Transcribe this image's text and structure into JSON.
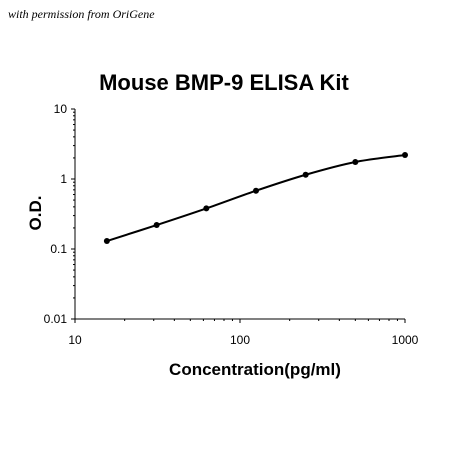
{
  "watermark": "with permission from OriGene",
  "chart_data": {
    "type": "line",
    "title": "Mouse BMP-9 ELISA Kit",
    "xlabel": "Concentration(pg/ml)",
    "ylabel": "O.D.",
    "xscale": "log",
    "yscale": "log",
    "xlim": [
      10,
      1000
    ],
    "ylim": [
      0.01,
      10
    ],
    "x_ticks": [
      "10",
      "100",
      "1000"
    ],
    "y_ticks": [
      "0.01",
      "0.1",
      "1",
      "10"
    ],
    "grid": false,
    "legend": "none",
    "series": [
      {
        "x": [
          15.6,
          31.25,
          62.5,
          125,
          250,
          500,
          1000
        ],
        "y": [
          0.13,
          0.22,
          0.38,
          0.68,
          1.15,
          1.75,
          2.2
        ]
      }
    ],
    "line_color": "#000000",
    "marker_color": "#000000"
  }
}
